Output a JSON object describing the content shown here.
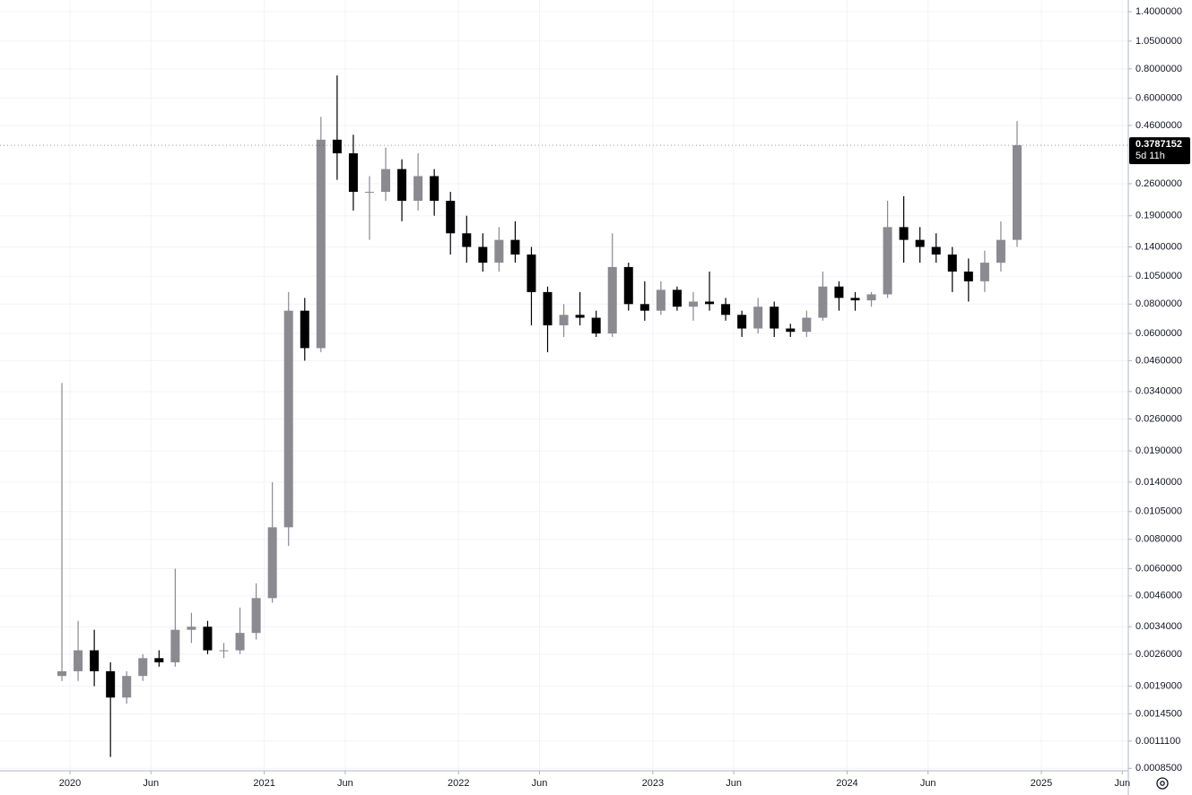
{
  "chart_data": {
    "type": "candlestick",
    "x": [
      "2019-12",
      "2020-01",
      "2020-02",
      "2020-03",
      "2020-04",
      "2020-05",
      "2020-06",
      "2020-07",
      "2020-08",
      "2020-09",
      "2020-10",
      "2020-11",
      "2020-12",
      "2021-01",
      "2021-02",
      "2021-03",
      "2021-04",
      "2021-05",
      "2021-06",
      "2021-07",
      "2021-08",
      "2021-09",
      "2021-10",
      "2021-11",
      "2021-12",
      "2022-01",
      "2022-02",
      "2022-03",
      "2022-04",
      "2022-05",
      "2022-06",
      "2022-07",
      "2022-08",
      "2022-09",
      "2022-10",
      "2022-11",
      "2022-12",
      "2023-01",
      "2023-02",
      "2023-03",
      "2023-04",
      "2023-05",
      "2023-06",
      "2023-07",
      "2023-08",
      "2023-09",
      "2023-10",
      "2023-11",
      "2023-12",
      "2024-01",
      "2024-02",
      "2024-03",
      "2024-04",
      "2024-05",
      "2024-06",
      "2024-07",
      "2024-08",
      "2024-09",
      "2024-10",
      "2024-11"
    ],
    "open": [
      0.0021,
      0.0022,
      0.0027,
      0.0022,
      0.0017,
      0.0021,
      0.0025,
      0.0024,
      0.0033,
      0.0034,
      0.0027,
      0.0027,
      0.0032,
      0.0045,
      0.009,
      0.075,
      0.052,
      0.4,
      0.35,
      0.24,
      0.24,
      0.3,
      0.22,
      0.28,
      0.22,
      0.16,
      0.14,
      0.12,
      0.15,
      0.13,
      0.09,
      0.065,
      0.072,
      0.07,
      0.06,
      0.115,
      0.08,
      0.075,
      0.092,
      0.078,
      0.082,
      0.08,
      0.072,
      0.063,
      0.078,
      0.063,
      0.061,
      0.07,
      0.095,
      0.085,
      0.083,
      0.088,
      0.17,
      0.15,
      0.14,
      0.13,
      0.11,
      0.1,
      0.12,
      0.15
    ],
    "high": [
      0.037,
      0.0036,
      0.0033,
      0.0024,
      0.0022,
      0.0026,
      0.0027,
      0.006,
      0.0039,
      0.0036,
      0.0029,
      0.0041,
      0.0052,
      0.014,
      0.09,
      0.085,
      0.5,
      0.75,
      0.42,
      0.28,
      0.37,
      0.33,
      0.35,
      0.3,
      0.24,
      0.19,
      0.16,
      0.17,
      0.18,
      0.14,
      0.095,
      0.08,
      0.09,
      0.075,
      0.16,
      0.12,
      0.1,
      0.1,
      0.095,
      0.09,
      0.11,
      0.085,
      0.075,
      0.085,
      0.082,
      0.066,
      0.075,
      0.11,
      0.1,
      0.09,
      0.09,
      0.22,
      0.23,
      0.17,
      0.16,
      0.14,
      0.125,
      0.135,
      0.18,
      0.48
    ],
    "low": [
      0.002,
      0.002,
      0.0019,
      0.00095,
      0.0016,
      0.002,
      0.0023,
      0.0023,
      0.0029,
      0.0026,
      0.0025,
      0.0026,
      0.003,
      0.0043,
      0.0075,
      0.046,
      0.05,
      0.27,
      0.2,
      0.15,
      0.22,
      0.18,
      0.2,
      0.19,
      0.13,
      0.12,
      0.11,
      0.11,
      0.12,
      0.065,
      0.05,
      0.058,
      0.065,
      0.058,
      0.058,
      0.075,
      0.068,
      0.072,
      0.075,
      0.068,
      0.075,
      0.068,
      0.058,
      0.06,
      0.058,
      0.058,
      0.058,
      0.068,
      0.075,
      0.075,
      0.078,
      0.085,
      0.12,
      0.12,
      0.12,
      0.09,
      0.082,
      0.09,
      0.11,
      0.14
    ],
    "close": [
      0.0022,
      0.0027,
      0.0022,
      0.0017,
      0.0021,
      0.0025,
      0.0024,
      0.0033,
      0.0034,
      0.0027,
      0.0027,
      0.0032,
      0.0045,
      0.009,
      0.075,
      0.052,
      0.4,
      0.35,
      0.24,
      0.24,
      0.3,
      0.22,
      0.28,
      0.22,
      0.16,
      0.14,
      0.12,
      0.15,
      0.13,
      0.09,
      0.065,
      0.072,
      0.07,
      0.06,
      0.115,
      0.08,
      0.075,
      0.092,
      0.078,
      0.082,
      0.08,
      0.072,
      0.063,
      0.078,
      0.063,
      0.061,
      0.07,
      0.095,
      0.085,
      0.083,
      0.088,
      0.17,
      0.15,
      0.14,
      0.13,
      0.11,
      0.1,
      0.12,
      0.15,
      0.3787152
    ],
    "up_color": "#8a8a90",
    "down_color": "#000000",
    "log_scale": true,
    "grid": true,
    "ylim": [
      0.00083,
      1.57
    ],
    "yticks": [
      {
        "value": 1.4,
        "label": "1.4000000"
      },
      {
        "value": 1.05,
        "label": "1.0500000"
      },
      {
        "value": 0.8,
        "label": "0.8000000"
      },
      {
        "value": 0.6,
        "label": "0.6000000"
      },
      {
        "value": 0.46,
        "label": "0.4600000"
      },
      {
        "value": 0.26,
        "label": "0.2600000"
      },
      {
        "value": 0.19,
        "label": "0.1900000"
      },
      {
        "value": 0.14,
        "label": "0.1400000"
      },
      {
        "value": 0.105,
        "label": "0.1050000"
      },
      {
        "value": 0.08,
        "label": "0.0800000"
      },
      {
        "value": 0.06,
        "label": "0.0600000"
      },
      {
        "value": 0.046,
        "label": "0.0460000"
      },
      {
        "value": 0.034,
        "label": "0.0340000"
      },
      {
        "value": 0.026,
        "label": "0.0260000"
      },
      {
        "value": 0.019,
        "label": "0.0190000"
      },
      {
        "value": 0.014,
        "label": "0.0140000"
      },
      {
        "value": 0.0105,
        "label": "0.0105000"
      },
      {
        "value": 0.008,
        "label": "0.0080000"
      },
      {
        "value": 0.006,
        "label": "0.0060000"
      },
      {
        "value": 0.0046,
        "label": "0.0046000"
      },
      {
        "value": 0.0034,
        "label": "0.0034000"
      },
      {
        "value": 0.0026,
        "label": "0.0026000"
      },
      {
        "value": 0.0019,
        "label": "0.0019000"
      },
      {
        "value": 0.00145,
        "label": "0.0014500"
      },
      {
        "value": 0.00111,
        "label": "0.0011100"
      },
      {
        "value": 0.00085,
        "label": "0.0008500"
      }
    ],
    "xticks": [
      {
        "value": "2020-01",
        "label": "2020"
      },
      {
        "value": "2020-06",
        "label": "Jun"
      },
      {
        "value": "2021-01",
        "label": "2021"
      },
      {
        "value": "2021-06",
        "label": "Jun"
      },
      {
        "value": "2022-01",
        "label": "2022"
      },
      {
        "value": "2022-06",
        "label": "Jun"
      },
      {
        "value": "2023-01",
        "label": "2023"
      },
      {
        "value": "2023-06",
        "label": "Jun"
      },
      {
        "value": "2024-01",
        "label": "2024"
      },
      {
        "value": "2024-06",
        "label": "Jun"
      },
      {
        "value": "2025-01",
        "label": "2025"
      },
      {
        "value": "2025-06",
        "label": "Jun"
      }
    ],
    "countdown": "5d 11h"
  }
}
